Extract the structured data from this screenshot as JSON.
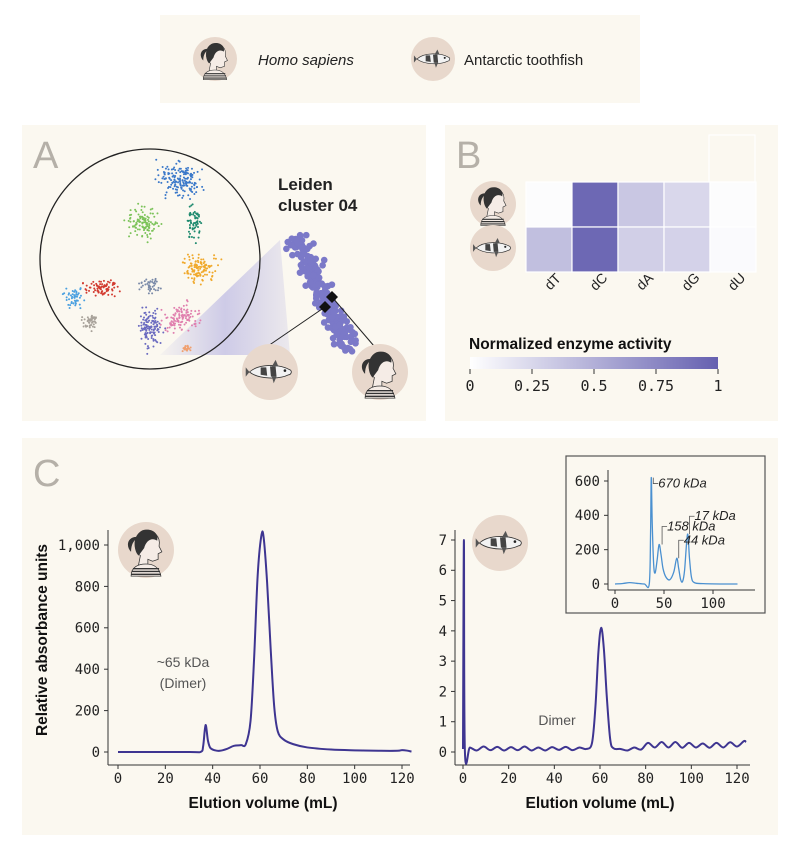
{
  "legend": {
    "items": [
      {
        "label": "Homo sapiens",
        "icon": "human-icon",
        "italic": true
      },
      {
        "label": "Antarctic toothfish",
        "icon": "fish-icon",
        "italic": false
      }
    ]
  },
  "panel_a": {
    "letter": "A",
    "cluster_title_line1": "Leiden",
    "cluster_title_line2": "cluster 04",
    "cluster_colors": [
      "#3a78c9",
      "#7cc35a",
      "#1e8a6e",
      "#f0a92c",
      "#d23b30",
      "#4aa0e0",
      "#a8a29a",
      "#7a8aa8",
      "#6b6bc0",
      "#e07fae",
      "#f0a070"
    ],
    "highlight_color": "#7b79c8"
  },
  "chart_data": [
    {
      "type": "heatmap",
      "panel": "B",
      "rows": [
        "Homo sapiens",
        "Antarctic toothfish"
      ],
      "columns": [
        "dT",
        "dC",
        "dA",
        "dG",
        "dU"
      ],
      "values": [
        [
          0.02,
          0.95,
          0.35,
          0.25,
          0.02
        ],
        [
          0.4,
          0.95,
          0.3,
          0.28,
          0.03
        ]
      ],
      "colorbar": {
        "title": "Normalized enzyme activity",
        "ticks": [
          "0",
          "0.25",
          "0.5",
          "0.75",
          "1"
        ],
        "range": [
          0,
          1
        ],
        "low_color": "#ffffff",
        "high_color": "#6560b0"
      }
    },
    {
      "type": "line",
      "panel": "C",
      "species": "Homo sapiens",
      "xlabel": "Elution volume (mL)",
      "ylabel": "Relative absorbance units",
      "xlim": [
        0,
        124
      ],
      "ylim": [
        0,
        1050
      ],
      "xticks": [
        "0",
        "20",
        "40",
        "60",
        "80",
        "100",
        "120"
      ],
      "yticks": [
        "0",
        "200",
        "400",
        "600",
        "800",
        "1,000"
      ],
      "annotation_line1": "~65 kDa",
      "annotation_line2": "(Dimer)",
      "color": "#3e3591",
      "points": [
        [
          0,
          0
        ],
        [
          30,
          0
        ],
        [
          35,
          1
        ],
        [
          36,
          30
        ],
        [
          37,
          130
        ],
        [
          38,
          55
        ],
        [
          39,
          20
        ],
        [
          41,
          8
        ],
        [
          43,
          6
        ],
        [
          46,
          15
        ],
        [
          49,
          30
        ],
        [
          52,
          33
        ],
        [
          54,
          38
        ],
        [
          56,
          150
        ],
        [
          57.5,
          450
        ],
        [
          59,
          850
        ],
        [
          60.5,
          1040
        ],
        [
          61.5,
          1040
        ],
        [
          63,
          820
        ],
        [
          64.5,
          500
        ],
        [
          66,
          220
        ],
        [
          67.5,
          100
        ],
        [
          70,
          60
        ],
        [
          74,
          38
        ],
        [
          80,
          22
        ],
        [
          90,
          12
        ],
        [
          100,
          8
        ],
        [
          110,
          6
        ],
        [
          118,
          6
        ],
        [
          120,
          9
        ],
        [
          122,
          7
        ],
        [
          124,
          2
        ]
      ]
    },
    {
      "type": "line",
      "panel": "C",
      "species": "Antarctic toothfish",
      "annotation": "Dimer",
      "xlabel": "Elution volume (mL)",
      "xlim": [
        0,
        124
      ],
      "ylim": [
        0,
        7
      ],
      "xticks": [
        "0",
        "20",
        "40",
        "60",
        "80",
        "100",
        "120"
      ],
      "yticks": [
        "0",
        "1",
        "2",
        "3",
        "4",
        "5",
        "6",
        "7"
      ],
      "color": "#3e3591",
      "points": [
        [
          0,
          0.1
        ],
        [
          0.4,
          7
        ],
        [
          0.8,
          0.1
        ],
        [
          3,
          0.15
        ],
        [
          6,
          0.05
        ],
        [
          9,
          0.18
        ],
        [
          12,
          0.06
        ],
        [
          15,
          0.17
        ],
        [
          18,
          0.05
        ],
        [
          21,
          0.16
        ],
        [
          24,
          0.06
        ],
        [
          27,
          0.18
        ],
        [
          30,
          0.05
        ],
        [
          33,
          0.15
        ],
        [
          36,
          0.05
        ],
        [
          39,
          0.16
        ],
        [
          42,
          0.07
        ],
        [
          45,
          0.17
        ],
        [
          48,
          0.06
        ],
        [
          51,
          0.15
        ],
        [
          54,
          0.1
        ],
        [
          56.5,
          0.3
        ],
        [
          58,
          1.5
        ],
        [
          59.3,
          3.3
        ],
        [
          60.5,
          4.1
        ],
        [
          61.7,
          3.4
        ],
        [
          63,
          1.8
        ],
        [
          64.5,
          0.4
        ],
        [
          66,
          0.12
        ],
        [
          69,
          0.1
        ],
        [
          72,
          0.05
        ],
        [
          75,
          0.15
        ],
        [
          78,
          0.08
        ],
        [
          81,
          0.3
        ],
        [
          84,
          0.15
        ],
        [
          87,
          0.33
        ],
        [
          90,
          0.15
        ],
        [
          93,
          0.33
        ],
        [
          96,
          0.14
        ],
        [
          99,
          0.3
        ],
        [
          102,
          0.15
        ],
        [
          105,
          0.28
        ],
        [
          108,
          0.14
        ],
        [
          111,
          0.3
        ],
        [
          114,
          0.15
        ],
        [
          117,
          0.32
        ],
        [
          120,
          0.18
        ],
        [
          123,
          0.36
        ],
        [
          124,
          0.33
        ]
      ]
    },
    {
      "type": "line",
      "panel": "C-inset",
      "xlim": [
        0,
        125
      ],
      "ylim": [
        0,
        650
      ],
      "xticks": [
        "0",
        "50",
        "100"
      ],
      "yticks": [
        "0",
        "200",
        "400",
        "600"
      ],
      "color": "#4a90d0",
      "labels": [
        {
          "text": "670 kDa",
          "x": 37,
          "y": 620
        },
        {
          "text": "158 kDa",
          "x": 46,
          "y": 230
        },
        {
          "text": "44 kDa",
          "x": 63,
          "y": 150
        },
        {
          "text": "17 kDa",
          "x": 74,
          "y": 290
        }
      ],
      "points": [
        [
          0,
          0
        ],
        [
          8,
          3
        ],
        [
          15,
          8
        ],
        [
          22,
          4
        ],
        [
          30,
          0
        ],
        [
          35,
          2
        ],
        [
          36.3,
          300
        ],
        [
          37,
          620
        ],
        [
          38,
          350
        ],
        [
          39.5,
          110
        ],
        [
          41,
          65
        ],
        [
          43,
          140
        ],
        [
          45,
          230
        ],
        [
          47,
          170
        ],
        [
          49,
          90
        ],
        [
          52,
          40
        ],
        [
          56,
          25
        ],
        [
          60,
          70
        ],
        [
          63,
          150
        ],
        [
          65,
          90
        ],
        [
          67,
          25
        ],
        [
          69,
          15
        ],
        [
          71,
          80
        ],
        [
          74,
          290
        ],
        [
          76,
          150
        ],
        [
          78,
          40
        ],
        [
          81,
          8
        ],
        [
          90,
          2
        ],
        [
          110,
          0
        ],
        [
          125,
          0
        ]
      ]
    }
  ],
  "panel_b": {
    "letter": "B"
  },
  "panel_c": {
    "letter": "C"
  }
}
